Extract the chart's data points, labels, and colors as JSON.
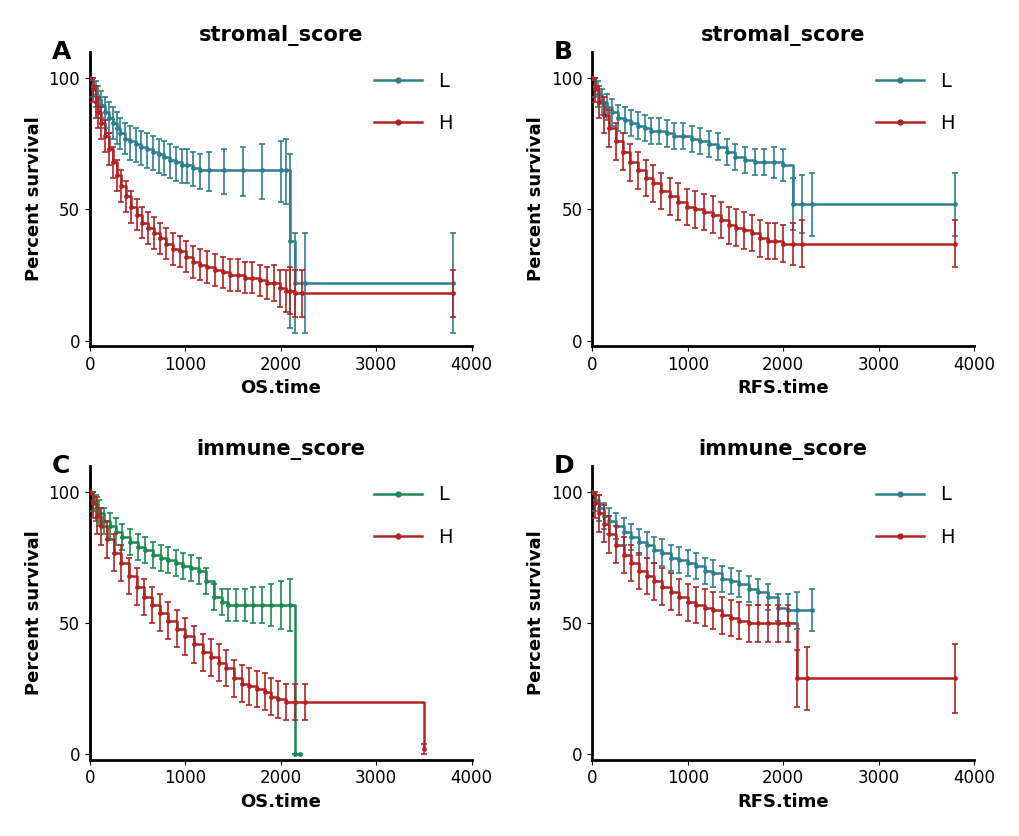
{
  "panels": [
    {
      "label": "A",
      "title": "stromal_score",
      "xlabel": "OS.time",
      "ylabel": "Percent survival",
      "xlim": [
        0,
        4000
      ],
      "ylim": [
        -2,
        110
      ],
      "yticks": [
        0,
        50,
        100
      ],
      "xticks": [
        0,
        1000,
        2000,
        3000,
        4000
      ],
      "color_L": "#2E7F8E",
      "color_H": "#B22222",
      "L_data": {
        "times": [
          0,
          30,
          60,
          90,
          120,
          160,
          200,
          240,
          280,
          320,
          370,
          420,
          480,
          540,
          600,
          660,
          720,
          780,
          840,
          900,
          960,
          1020,
          1080,
          1150,
          1250,
          1400,
          1600,
          1800,
          2000,
          2050,
          2100,
          2150,
          2250,
          3800
        ],
        "surv": [
          100,
          97,
          94,
          92,
          90,
          87,
          85,
          83,
          81,
          79,
          77,
          76,
          75,
          74,
          73,
          72,
          71,
          70,
          69,
          68,
          67,
          67,
          66,
          65,
          65,
          65,
          65,
          65,
          65,
          65,
          38,
          22,
          22,
          22
        ],
        "lower": [
          100,
          93,
          89,
          87,
          85,
          81,
          79,
          77,
          75,
          73,
          71,
          69,
          68,
          67,
          66,
          65,
          64,
          63,
          62,
          61,
          60,
          60,
          59,
          58,
          57,
          56,
          55,
          54,
          53,
          52,
          5,
          3,
          3,
          3
        ],
        "upper": [
          100,
          100,
          99,
          97,
          95,
          93,
          91,
          89,
          87,
          85,
          83,
          82,
          81,
          80,
          79,
          78,
          77,
          76,
          75,
          74,
          73,
          73,
          72,
          71,
          72,
          73,
          74,
          75,
          76,
          77,
          71,
          41,
          41,
          41
        ]
      },
      "H_data": {
        "times": [
          0,
          30,
          60,
          90,
          120,
          160,
          200,
          240,
          280,
          330,
          380,
          430,
          490,
          550,
          610,
          670,
          730,
          800,
          870,
          940,
          1010,
          1080,
          1150,
          1230,
          1310,
          1390,
          1470,
          1550,
          1620,
          1700,
          1780,
          1860,
          1930,
          1990,
          2050,
          2100,
          2150,
          2220,
          3800
        ],
        "surv": [
          100,
          96,
          91,
          87,
          83,
          78,
          73,
          68,
          63,
          59,
          55,
          51,
          48,
          45,
          43,
          41,
          39,
          37,
          35,
          34,
          32,
          30,
          29,
          28,
          27,
          26,
          25,
          25,
          24,
          24,
          23,
          22,
          22,
          20,
          19,
          19,
          18,
          18,
          18
        ],
        "lower": [
          100,
          91,
          85,
          81,
          77,
          72,
          67,
          62,
          57,
          53,
          49,
          45,
          42,
          39,
          37,
          35,
          33,
          31,
          29,
          28,
          26,
          24,
          23,
          22,
          21,
          20,
          19,
          19,
          18,
          18,
          17,
          16,
          15,
          13,
          11,
          10,
          9,
          9,
          9
        ],
        "upper": [
          100,
          100,
          97,
          93,
          89,
          84,
          79,
          74,
          69,
          65,
          61,
          57,
          54,
          51,
          49,
          47,
          45,
          43,
          41,
          40,
          38,
          36,
          35,
          34,
          33,
          32,
          31,
          31,
          30,
          30,
          29,
          28,
          29,
          27,
          27,
          28,
          27,
          27,
          27
        ]
      }
    },
    {
      "label": "B",
      "title": "stromal_score",
      "xlabel": "RFS.time",
      "ylabel": "Percent survival",
      "xlim": [
        0,
        4000
      ],
      "ylim": [
        -2,
        110
      ],
      "yticks": [
        0,
        50,
        100
      ],
      "xticks": [
        0,
        1000,
        2000,
        3000,
        4000
      ],
      "color_L": "#2E7F8E",
      "color_H": "#B22222",
      "L_data": {
        "times": [
          0,
          30,
          60,
          100,
          150,
          210,
          270,
          340,
          410,
          480,
          550,
          620,
          700,
          780,
          860,
          950,
          1040,
          1130,
          1220,
          1320,
          1410,
          1500,
          1600,
          1700,
          1800,
          1900,
          2000,
          2100,
          2200,
          2300,
          3800
        ],
        "surv": [
          100,
          97,
          94,
          91,
          89,
          87,
          85,
          84,
          83,
          82,
          81,
          80,
          80,
          79,
          78,
          78,
          77,
          76,
          75,
          74,
          72,
          70,
          69,
          68,
          68,
          68,
          67,
          52,
          52,
          52,
          52
        ],
        "lower": [
          100,
          93,
          89,
          86,
          84,
          82,
          80,
          79,
          78,
          77,
          76,
          75,
          75,
          74,
          73,
          73,
          72,
          71,
          70,
          69,
          67,
          65,
          64,
          63,
          63,
          62,
          61,
          42,
          41,
          40,
          40
        ],
        "upper": [
          100,
          100,
          99,
          96,
          94,
          92,
          90,
          89,
          88,
          87,
          86,
          85,
          85,
          84,
          83,
          83,
          82,
          81,
          80,
          79,
          77,
          75,
          74,
          73,
          73,
          74,
          73,
          62,
          63,
          64,
          64
        ]
      },
      "H_data": {
        "times": [
          0,
          30,
          70,
          120,
          180,
          250,
          320,
          400,
          480,
          560,
          640,
          720,
          810,
          900,
          990,
          1080,
          1170,
          1260,
          1350,
          1430,
          1510,
          1590,
          1670,
          1760,
          1840,
          1920,
          2000,
          2100,
          2200,
          3800
        ],
        "surv": [
          100,
          96,
          91,
          86,
          81,
          76,
          72,
          68,
          65,
          62,
          60,
          57,
          55,
          53,
          51,
          50,
          49,
          48,
          46,
          44,
          43,
          42,
          41,
          39,
          38,
          38,
          37,
          37,
          37,
          37
        ],
        "lower": [
          100,
          91,
          85,
          79,
          74,
          69,
          65,
          61,
          58,
          55,
          53,
          50,
          48,
          46,
          44,
          43,
          42,
          41,
          39,
          37,
          36,
          35,
          34,
          32,
          31,
          31,
          30,
          29,
          28,
          28
        ],
        "upper": [
          100,
          100,
          97,
          93,
          88,
          83,
          79,
          75,
          72,
          69,
          67,
          64,
          62,
          60,
          58,
          57,
          56,
          55,
          53,
          51,
          50,
          49,
          48,
          46,
          45,
          45,
          44,
          45,
          46,
          46
        ]
      }
    },
    {
      "label": "C",
      "title": "immune_score",
      "xlabel": "OS.time",
      "ylabel": "Percent survival",
      "xlim": [
        0,
        4000
      ],
      "ylim": [
        -2,
        110
      ],
      "yticks": [
        0,
        50,
        100
      ],
      "xticks": [
        0,
        1000,
        2000,
        3000,
        4000
      ],
      "color_L": "#1B8A50",
      "color_H": "#B22222",
      "L_data": {
        "times": [
          0,
          30,
          60,
          100,
          150,
          210,
          270,
          340,
          420,
          500,
          580,
          660,
          740,
          820,
          900,
          980,
          1060,
          1140,
          1220,
          1300,
          1380,
          1450,
          1530,
          1620,
          1710,
          1800,
          1900,
          2000,
          2100,
          2150,
          2200
        ],
        "surv": [
          100,
          97,
          94,
          92,
          89,
          87,
          85,
          83,
          81,
          79,
          78,
          76,
          75,
          74,
          73,
          72,
          71,
          70,
          66,
          60,
          58,
          57,
          57,
          57,
          57,
          57,
          57,
          57,
          57,
          0,
          0
        ],
        "lower": [
          100,
          93,
          89,
          87,
          84,
          82,
          80,
          78,
          76,
          74,
          73,
          71,
          70,
          69,
          68,
          67,
          66,
          65,
          61,
          55,
          53,
          51,
          51,
          51,
          50,
          50,
          49,
          48,
          47,
          0,
          0
        ],
        "upper": [
          100,
          100,
          99,
          97,
          94,
          92,
          90,
          88,
          86,
          84,
          83,
          81,
          80,
          79,
          78,
          77,
          76,
          75,
          71,
          65,
          63,
          63,
          63,
          63,
          64,
          64,
          65,
          66,
          67,
          0,
          0
        ]
      },
      "H_data": {
        "times": [
          0,
          30,
          70,
          120,
          180,
          250,
          330,
          410,
          490,
          570,
          650,
          730,
          820,
          910,
          1000,
          1090,
          1180,
          1270,
          1350,
          1430,
          1510,
          1590,
          1670,
          1750,
          1830,
          1900,
          1970,
          2050,
          2150,
          2250,
          3500
        ],
        "surv": [
          100,
          96,
          91,
          87,
          82,
          77,
          73,
          68,
          64,
          60,
          57,
          54,
          51,
          48,
          45,
          42,
          39,
          37,
          35,
          33,
          29,
          27,
          26,
          25,
          24,
          22,
          21,
          20,
          20,
          20,
          2
        ],
        "lower": [
          100,
          90,
          84,
          80,
          75,
          70,
          66,
          61,
          57,
          53,
          50,
          47,
          44,
          41,
          38,
          35,
          32,
          30,
          28,
          26,
          22,
          20,
          19,
          18,
          17,
          15,
          14,
          13,
          13,
          13,
          0
        ],
        "upper": [
          100,
          100,
          98,
          94,
          89,
          84,
          80,
          75,
          71,
          67,
          64,
          61,
          58,
          55,
          52,
          49,
          46,
          44,
          42,
          40,
          36,
          34,
          33,
          32,
          31,
          29,
          28,
          27,
          27,
          27,
          4
        ]
      }
    },
    {
      "label": "D",
      "title": "immune_score",
      "xlabel": "RFS.time",
      "ylabel": "Percent survival",
      "xlim": [
        0,
        4000
      ],
      "ylim": [
        -2,
        110
      ],
      "yticks": [
        0,
        50,
        100
      ],
      "xticks": [
        0,
        1000,
        2000,
        3000,
        4000
      ],
      "color_L": "#2E7F8E",
      "color_H": "#B22222",
      "L_data": {
        "times": [
          0,
          30,
          70,
          120,
          180,
          250,
          330,
          410,
          490,
          570,
          650,
          730,
          820,
          910,
          1000,
          1090,
          1180,
          1270,
          1360,
          1450,
          1540,
          1640,
          1740,
          1840,
          1950,
          2050,
          2150,
          2300
        ],
        "surv": [
          100,
          97,
          94,
          91,
          89,
          87,
          85,
          83,
          81,
          80,
          78,
          77,
          75,
          74,
          73,
          72,
          70,
          69,
          67,
          66,
          65,
          63,
          62,
          60,
          56,
          55,
          55,
          55
        ],
        "lower": [
          100,
          93,
          89,
          86,
          84,
          82,
          80,
          78,
          76,
          75,
          73,
          72,
          70,
          69,
          68,
          67,
          65,
          64,
          62,
          61,
          60,
          58,
          57,
          55,
          51,
          49,
          48,
          47
        ],
        "upper": [
          100,
          100,
          99,
          96,
          94,
          92,
          90,
          88,
          86,
          85,
          83,
          82,
          80,
          79,
          78,
          77,
          75,
          74,
          72,
          71,
          70,
          68,
          67,
          65,
          61,
          61,
          62,
          63
        ]
      },
      "H_data": {
        "times": [
          0,
          30,
          70,
          120,
          180,
          250,
          330,
          410,
          490,
          570,
          650,
          730,
          820,
          910,
          1000,
          1090,
          1180,
          1270,
          1360,
          1450,
          1540,
          1640,
          1740,
          1840,
          1950,
          2050,
          2150,
          2250,
          3800
        ],
        "surv": [
          100,
          96,
          92,
          88,
          84,
          80,
          76,
          73,
          70,
          68,
          66,
          64,
          62,
          60,
          58,
          57,
          56,
          55,
          53,
          52,
          51,
          50,
          50,
          50,
          50,
          50,
          29,
          29,
          29
        ],
        "lower": [
          100,
          90,
          85,
          81,
          77,
          73,
          69,
          66,
          63,
          61,
          59,
          57,
          55,
          53,
          51,
          50,
          49,
          48,
          46,
          45,
          44,
          43,
          43,
          43,
          43,
          43,
          18,
          17,
          16
        ],
        "upper": [
          100,
          100,
          99,
          95,
          91,
          87,
          83,
          80,
          77,
          75,
          73,
          71,
          69,
          67,
          65,
          64,
          63,
          62,
          60,
          59,
          58,
          57,
          57,
          57,
          57,
          57,
          40,
          41,
          42
        ]
      }
    }
  ],
  "background_color": "#FFFFFF",
  "title_fontsize": 15,
  "label_fontsize": 13,
  "tick_fontsize": 12,
  "legend_fontsize": 14,
  "markersize": 3.5,
  "linewidth": 1.8,
  "elinewidth": 1.2,
  "capsize": 2.5
}
